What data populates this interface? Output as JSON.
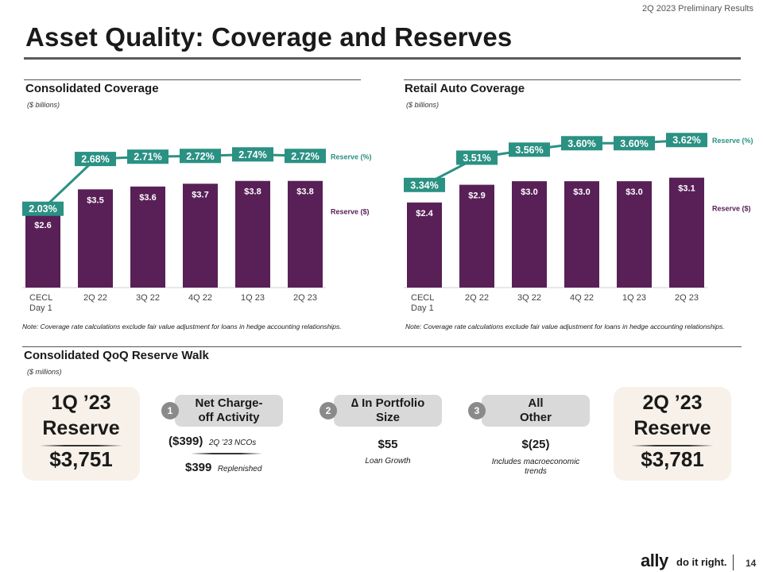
{
  "header": {
    "report_label": "2Q 2023 Preliminary Results"
  },
  "page_title": "Asset Quality: Coverage and Reserves",
  "colors": {
    "bar": "#582057",
    "teal": "#2a9183",
    "teal_text": "#2a9183",
    "reserve_box": "#f8f1e9",
    "step_box": "#d9d9d9"
  },
  "chart_data": [
    {
      "type": "bar",
      "title": "Consolidated Coverage",
      "units": "($ billions)",
      "categories": [
        "CECL Day 1",
        "2Q 22",
        "3Q 22",
        "4Q 22",
        "1Q 23",
        "2Q 23"
      ],
      "category_lines": [
        [
          "CECL",
          "Day 1"
        ],
        [
          "2Q 22"
        ],
        [
          "3Q 22"
        ],
        [
          "4Q 22"
        ],
        [
          "1Q 23"
        ],
        [
          "2Q 23"
        ]
      ],
      "series": [
        {
          "name": "Reserve ($)",
          "kind": "bar",
          "values": [
            2.6,
            3.5,
            3.6,
            3.7,
            3.8,
            3.8
          ],
          "labels": [
            "$2.6",
            "$3.5",
            "$3.6",
            "$3.7",
            "$3.8",
            "$3.8"
          ]
        },
        {
          "name": "Reserve (%)",
          "kind": "line",
          "values": [
            2.03,
            2.68,
            2.71,
            2.72,
            2.74,
            2.72
          ],
          "labels": [
            "2.03%",
            "2.68%",
            "2.71%",
            "2.72%",
            "2.74%",
            "2.72%"
          ]
        }
      ],
      "legend": {
        "line": "Reserve (%)",
        "bar": "Reserve ($)"
      },
      "ylim_bar": [
        0,
        6.0
      ],
      "ylim_line": [
        1.0,
        3.2
      ],
      "note": "Note: Coverage rate calculations exclude fair value adjustment for loans in hedge accounting relationships."
    },
    {
      "type": "bar",
      "title": "Retail Auto Coverage",
      "units": "($ billions)",
      "categories": [
        "CECL Day 1",
        "2Q 22",
        "3Q 22",
        "4Q 22",
        "1Q 23",
        "2Q 23"
      ],
      "category_lines": [
        [
          "CECL",
          "Day 1"
        ],
        [
          "2Q 22"
        ],
        [
          "3Q 22"
        ],
        [
          "4Q 22"
        ],
        [
          "1Q 23"
        ],
        [
          "2Q 23"
        ]
      ],
      "series": [
        {
          "name": "Reserve ($)",
          "kind": "bar",
          "values": [
            2.4,
            2.9,
            3.0,
            3.0,
            3.0,
            3.1
          ],
          "labels": [
            "$2.4",
            "$2.9",
            "$3.0",
            "$3.0",
            "$3.0",
            "$3.1"
          ]
        },
        {
          "name": "Reserve (%)",
          "kind": "line",
          "values": [
            3.34,
            3.51,
            3.56,
            3.6,
            3.6,
            3.62
          ],
          "labels": [
            "3.34%",
            "3.51%",
            "3.56%",
            "3.60%",
            "3.60%",
            "3.62%"
          ]
        }
      ],
      "legend": {
        "line": "Reserve (%)",
        "bar": "Reserve ($)"
      },
      "ylim_bar": [
        0,
        4.75
      ],
      "ylim_line": [
        2.7,
        3.75
      ],
      "note": "Note: Coverage rate calculations exclude fair value adjustment for loans in hedge accounting relationships."
    }
  ],
  "walk": {
    "title": "Consolidated QoQ Reserve Walk",
    "units": "($ millions)",
    "start": {
      "label_line1": "1Q ’23",
      "label_line2": "Reserve",
      "value": "$3,751"
    },
    "end": {
      "label_line1": "2Q ’23",
      "label_line2": "Reserve",
      "value": "$3,781"
    },
    "steps": [
      {
        "num": "1",
        "label_line1": "Net Charge-",
        "label_line2": "off Activity",
        "value1": "($399)",
        "note1": "2Q ’23 NCOs",
        "value2": "$399",
        "note2": "Replenished"
      },
      {
        "num": "2",
        "label_line1": "∆ In Portfolio",
        "label_line2": "Size",
        "value1": "$55",
        "note1_line1": "Loan Growth"
      },
      {
        "num": "3",
        "label_line1": "All",
        "label_line2": "Other",
        "value1": "$(25)",
        "note1_line1": "Includes macroeconomic",
        "note1_line2": "trends"
      }
    ]
  },
  "footer": {
    "logo": "ally",
    "tagline": "do it right.",
    "page_number": "14"
  }
}
